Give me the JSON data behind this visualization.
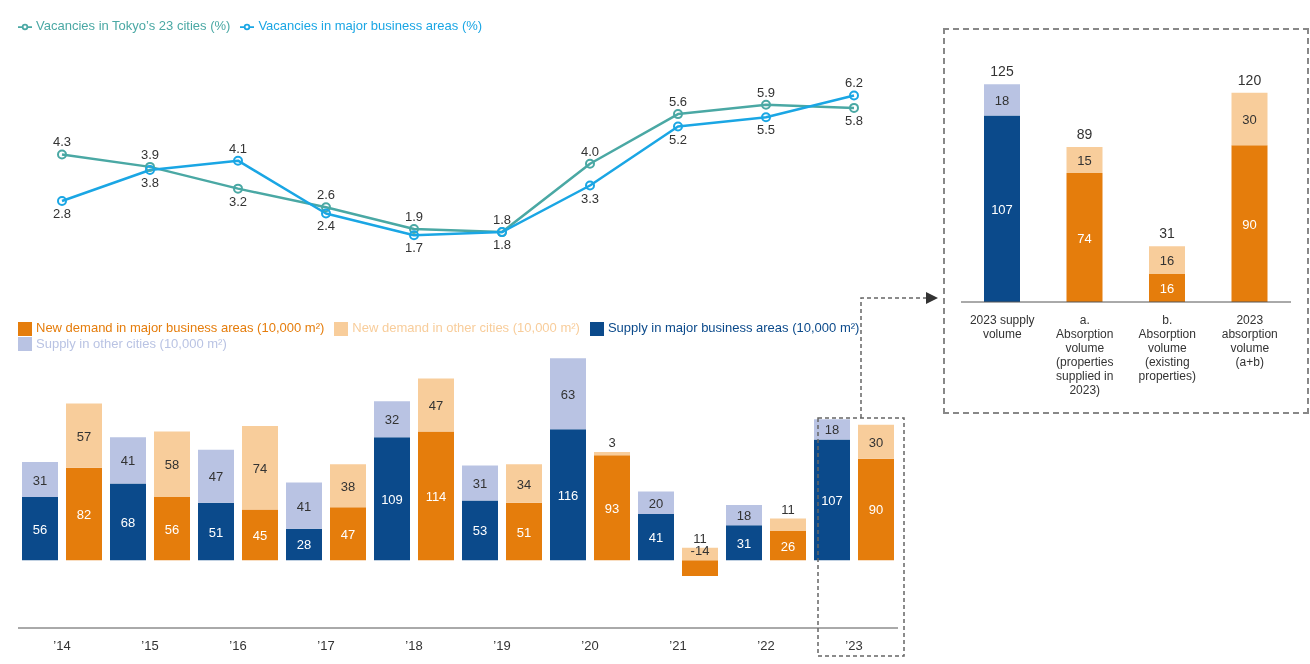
{
  "chart_data": [
    {
      "type": "line",
      "categories": [
        null,
        null,
        null,
        null,
        null,
        null,
        null,
        null,
        null,
        null
      ],
      "tick_labels": false,
      "marker": "circle",
      "legend": "top left",
      "series": [
        {
          "name": "Vacancies in Tokyo’s 23 cities (%)",
          "color": "#4aa8a4",
          "values": [
            4.3,
            3.9,
            3.2,
            2.6,
            1.9,
            1.8,
            4.0,
            5.6,
            5.9,
            5.8
          ],
          "value_labels": [
            "4.3",
            "3.9",
            "3.2",
            "2.6",
            "1.9",
            "1.8",
            "4.0",
            "5.6",
            "5.9",
            "5.8"
          ]
        },
        {
          "name": "Vacancies in major business areas (%)",
          "color": "#1aa6e4",
          "values": [
            2.8,
            3.8,
            4.1,
            2.4,
            1.7,
            1.8,
            3.3,
            5.2,
            5.5,
            6.2
          ],
          "value_labels": [
            "2.8",
            "3.8",
            "4.1",
            "2.4",
            "1.7",
            "1.8",
            "3.3",
            "5.2",
            "5.5",
            "6.2"
          ]
        }
      ]
    },
    {
      "type": "bar",
      "stacked": true,
      "categories": [
        "’14",
        null,
        "’15",
        null,
        "’16",
        null,
        "’17",
        null,
        "’18",
        null,
        "’19",
        null,
        "’20",
        null,
        "’21",
        null,
        "’22",
        null,
        "’23",
        null
      ],
      "data_labels": true,
      "legend": "top left",
      "series": [
        {
          "name": "Supply in major business areas (10,000 m²)",
          "color": "#0b4a8b",
          "values": [
            56,
            null,
            68,
            null,
            51,
            null,
            28,
            null,
            109,
            null,
            53,
            null,
            116,
            null,
            41,
            null,
            31,
            null,
            107,
            null
          ]
        },
        {
          "name": "Supply in other cities (10,000 m²)",
          "color": "#b9c3e3",
          "values": [
            31,
            null,
            41,
            null,
            47,
            null,
            41,
            null,
            32,
            null,
            31,
            null,
            63,
            null,
            20,
            null,
            18,
            null,
            18,
            null
          ]
        },
        {
          "name": "New demand in major business areas (10,000 m²)",
          "color": "#e57d0c",
          "values": [
            null,
            82,
            null,
            56,
            null,
            45,
            null,
            47,
            null,
            114,
            null,
            51,
            null,
            93,
            null,
            -14,
            null,
            26,
            null,
            90
          ]
        },
        {
          "name": "New demand in other cities (10,000 m²)",
          "color": "#f8cd9b",
          "values": [
            null,
            57,
            null,
            58,
            null,
            74,
            null,
            38,
            null,
            47,
            null,
            34,
            null,
            3,
            null,
            11,
            null,
            11,
            null,
            30
          ]
        }
      ]
    },
    {
      "type": "bar",
      "stacked": true,
      "categories": [
        "2023 supply volume",
        "a. Absorption volume (properties supplied in 2023)",
        "b. Absorption volume (existing properties)",
        "2023 absorption volume (a+b)"
      ],
      "data_labels": true,
      "totals": [
        "125",
        "89",
        "31",
        "120"
      ],
      "series": [
        {
          "colors": [
            "#0b4a8b",
            "#e57d0c",
            "#e57d0c",
            "#e57d0c"
          ],
          "values": [
            107,
            74,
            16,
            90
          ]
        },
        {
          "colors": [
            "#b9c3e3",
            "#f8cd9b",
            "#f8cd9b",
            "#f8cd9b"
          ],
          "values": [
            18,
            15,
            16,
            30
          ]
        }
      ]
    }
  ]
}
